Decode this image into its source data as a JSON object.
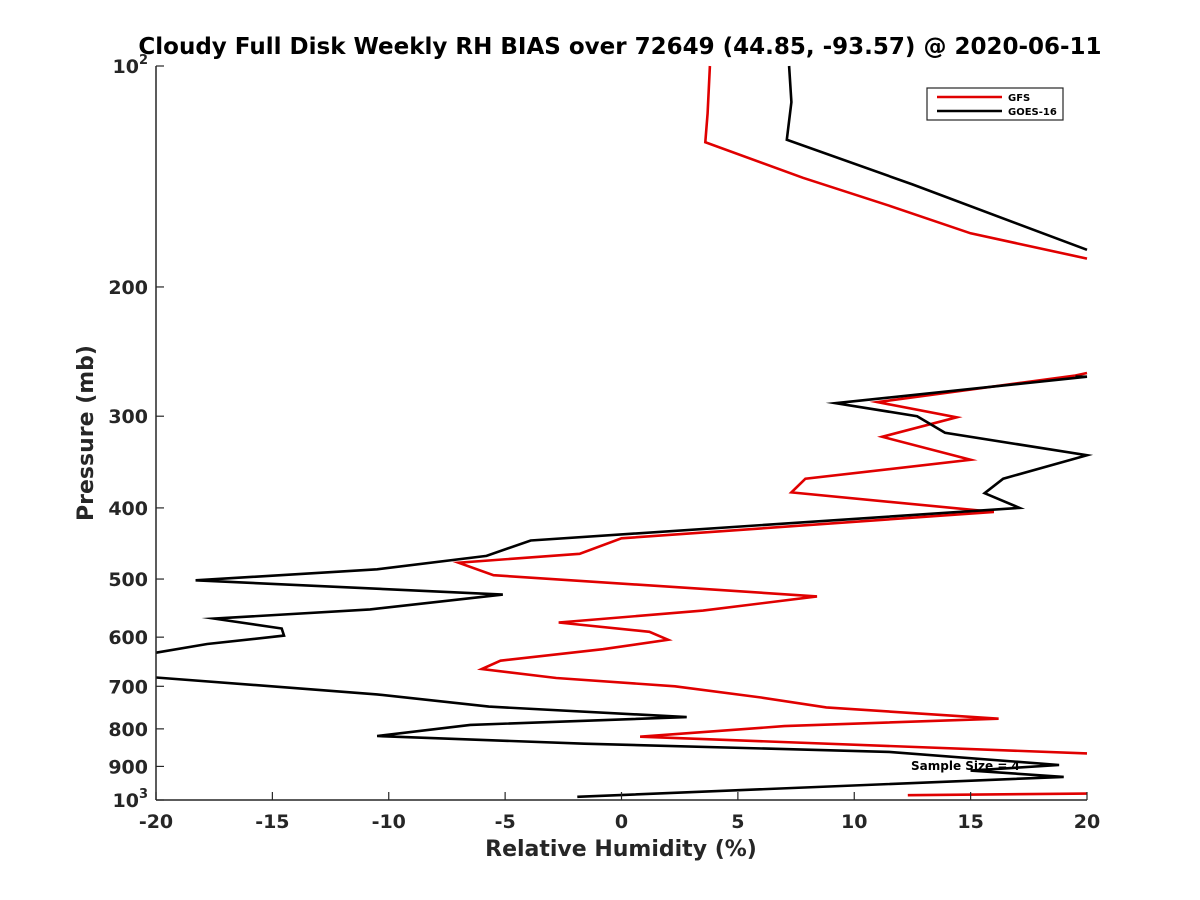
{
  "chart_data": {
    "type": "line",
    "title": "Cloudy Full Disk Weekly RH BIAS over 72649 (44.85, -93.57) @ 2020-06-11",
    "xlabel": "Relative Humidity (%)",
    "ylabel": "Pressure (mb)",
    "xlim": [
      -20,
      20
    ],
    "ylim": [
      100,
      1000
    ],
    "y_scale": "log",
    "y_reversed": true,
    "grid": false,
    "legend_position": "top-right",
    "x_ticks": [
      "-20",
      "-15",
      "-10",
      "-5",
      "0",
      "5",
      "10",
      "15",
      "20"
    ],
    "y_ticks": [
      {
        "value": 100,
        "base": "10",
        "exp": "2"
      },
      {
        "value": 200,
        "label": "200"
      },
      {
        "value": 300,
        "label": "300"
      },
      {
        "value": 400,
        "label": "400"
      },
      {
        "value": 500,
        "label": "500"
      },
      {
        "value": 600,
        "label": "600"
      },
      {
        "value": 700,
        "label": "700"
      },
      {
        "value": 800,
        "label": "800"
      },
      {
        "value": 900,
        "label": "900"
      },
      {
        "value": 1000,
        "base": "10",
        "exp": "3"
      }
    ],
    "annotation": "Sample Size = 4",
    "series": [
      {
        "name": "GFS",
        "color": "#e00000",
        "segments": [
          [
            [
              3.8,
              100
            ],
            [
              3.7,
              116
            ],
            [
              3.6,
              127
            ],
            [
              7.8,
              142
            ],
            [
              11.5,
              155
            ],
            [
              15,
              169
            ],
            [
              20,
              183
            ]
          ],
          [
            [
              20,
              262
            ],
            [
              19.5,
              264
            ],
            [
              11.0,
              287
            ],
            [
              14.4,
              301
            ],
            [
              11.2,
              320
            ],
            [
              15.0,
              344
            ],
            [
              7.9,
              365
            ],
            [
              7.3,
              381
            ],
            [
              16.0,
              405
            ],
            [
              0,
              440
            ],
            [
              -1.8,
              462
            ],
            [
              -7,
              475
            ],
            [
              -5.5,
              494
            ],
            [
              8.4,
              528
            ],
            [
              3.5,
              552
            ],
            [
              -2.7,
              573
            ],
            [
              1.2,
              590
            ],
            [
              2,
              605
            ],
            [
              -0.8,
              623
            ],
            [
              -5.2,
              646
            ],
            [
              -6,
              663
            ],
            [
              -2.8,
              682
            ],
            [
              2.3,
              700
            ],
            [
              6,
              725
            ],
            [
              8.8,
              748
            ],
            [
              16.2,
              775
            ],
            [
              7,
              793
            ],
            [
              0.8,
              820
            ],
            [
              20,
              864
            ]
          ],
          [
            [
              12.3,
              985
            ],
            [
              20,
              980
            ]
          ]
        ]
      },
      {
        "name": "GOES-16",
        "color": "#000000",
        "segments": [
          [
            [
              7.2,
              100
            ],
            [
              7.3,
              112
            ],
            [
              7.1,
              126
            ],
            [
              12.5,
              145
            ],
            [
              20,
              178
            ]
          ],
          [
            [
              19.5,
              265
            ],
            [
              20,
              265
            ],
            [
              9.2,
              288
            ],
            [
              12.7,
              300
            ],
            [
              13.9,
              316
            ],
            [
              20,
              339
            ],
            [
              16.4,
              365
            ],
            [
              15.6,
              382
            ],
            [
              17.1,
              400
            ],
            [
              -3.9,
              443
            ],
            [
              -5.8,
              465
            ],
            [
              -10.5,
              485
            ],
            [
              -18.3,
              502
            ],
            [
              -5.1,
              525
            ],
            [
              -10.8,
              550
            ],
            [
              -17.5,
              566
            ],
            [
              -14.6,
              584
            ],
            [
              -14.5,
              597
            ],
            [
              -17.8,
              613
            ],
            [
              -20,
              630
            ]
          ],
          [
            [
              -20,
              681
            ],
            [
              -10.5,
              718
            ],
            [
              -5.7,
              746
            ],
            [
              2.8,
              771
            ],
            [
              -6.5,
              790
            ],
            [
              -10.5,
              818
            ],
            [
              -1.6,
              838
            ],
            [
              11.5,
              860
            ],
            [
              18.8,
              896
            ],
            [
              15,
              912
            ],
            [
              19,
              930
            ],
            [
              -1.9,
              990
            ]
          ]
        ]
      }
    ]
  }
}
